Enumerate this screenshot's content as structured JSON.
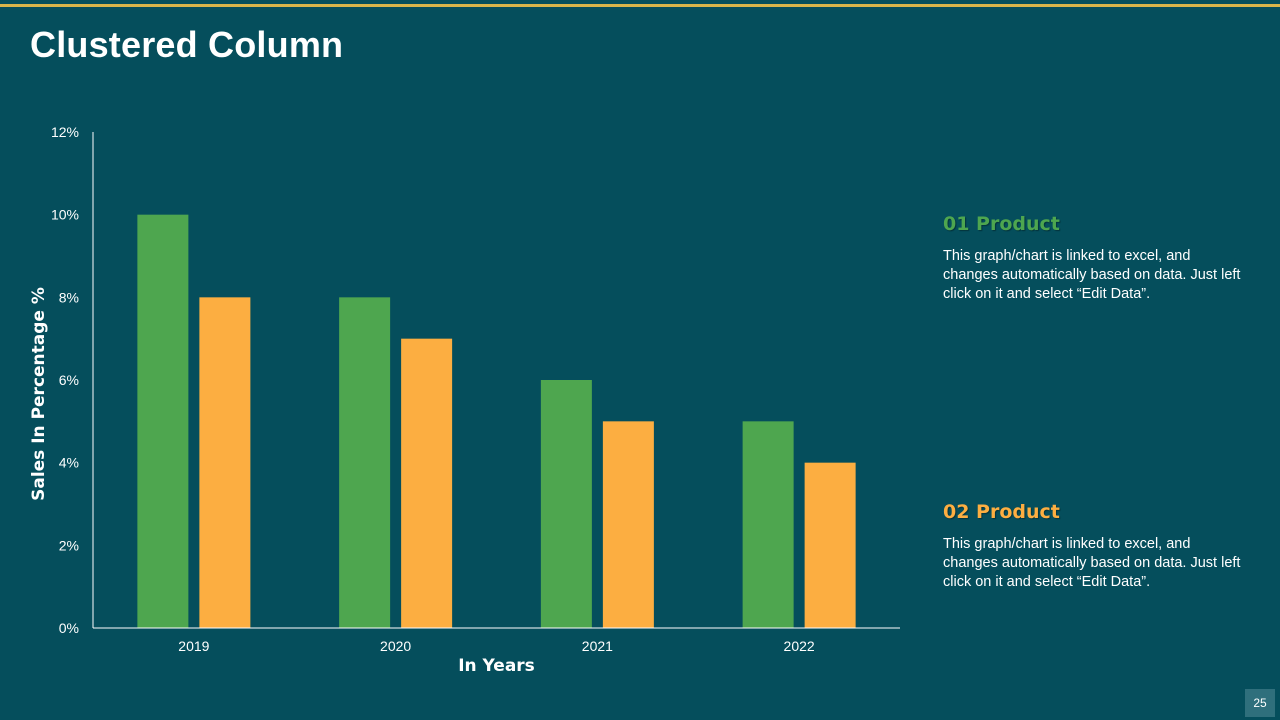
{
  "slide": {
    "title": "Clustered Column",
    "page_number": "25"
  },
  "colors": {
    "background": "#054e5c",
    "accent_rule": "#d9b44a",
    "series_1": "#4ea64f",
    "series_2": "#fcae41"
  },
  "chart_data": {
    "type": "bar",
    "categories": [
      "2019",
      "2020",
      "2021",
      "2022"
    ],
    "series": [
      {
        "name": "01 Product",
        "values": [
          10,
          8,
          6,
          5
        ],
        "color": "#4ea64f"
      },
      {
        "name": "02 Product",
        "values": [
          8,
          7,
          5,
          4
        ],
        "color": "#fcae41"
      }
    ],
    "xlabel": "In Years",
    "ylabel": "Sales In Percentage %",
    "ylim": [
      0,
      12
    ],
    "yticks": [
      "0%",
      "2%",
      "4%",
      "6%",
      "8%",
      "10%",
      "12%"
    ],
    "grid": false,
    "legend": "right"
  },
  "legend": {
    "items": [
      {
        "title": "01 Product",
        "description": "This graph/chart is linked to excel, and changes automatically based on data. Just left click on it and select “Edit Data”."
      },
      {
        "title": "02 Product",
        "description": "This graph/chart is linked to excel, and changes automatically based on data. Just left click on it and select “Edit Data”."
      }
    ]
  }
}
